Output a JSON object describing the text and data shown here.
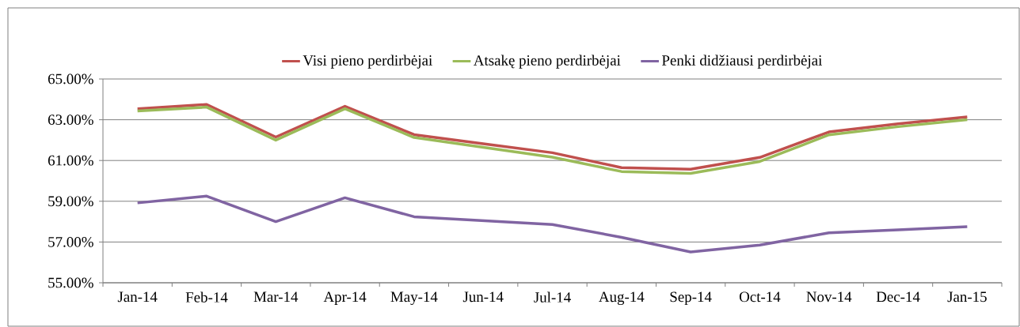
{
  "chart_data": {
    "type": "line",
    "categories": [
      "Jan-14",
      "Feb-14",
      "Mar-14",
      "Apr-14",
      "May-14",
      "Jun-14",
      "Jul-14",
      "Aug-14",
      "Sep-14",
      "Oct-14",
      "Nov-14",
      "Dec-14",
      "Jan-15"
    ],
    "series": [
      {
        "name": "Visi pieno perdirbėjai",
        "color": "#c0504d",
        "values": [
          63.54,
          63.75,
          62.15,
          63.66,
          62.27,
          61.82,
          61.38,
          60.65,
          60.57,
          61.15,
          62.4,
          62.8,
          63.14
        ]
      },
      {
        "name": "Atsakę pieno perdirbėjai",
        "color": "#9bbb59",
        "values": [
          63.43,
          63.62,
          62.0,
          63.54,
          62.13,
          61.65,
          61.16,
          60.46,
          60.37,
          60.95,
          62.26,
          62.66,
          63.0
        ]
      },
      {
        "name": "Penki didžiausi perdirbėjai",
        "color": "#8064a2",
        "values": [
          58.92,
          59.25,
          58.0,
          59.17,
          58.24,
          58.05,
          57.86,
          57.23,
          56.51,
          56.85,
          57.45,
          57.6,
          57.75
        ]
      }
    ],
    "ylim": [
      55,
      65
    ],
    "yticks": [
      {
        "value": 55,
        "label": "55.00%"
      },
      {
        "value": 57,
        "label": "57.00%"
      },
      {
        "value": 59,
        "label": "59.00%"
      },
      {
        "value": 61,
        "label": "61.00%"
      },
      {
        "value": 63,
        "label": "63.00%"
      },
      {
        "value": 65,
        "label": "65.00%"
      }
    ],
    "grid": "y",
    "legend": "top",
    "marker": "none",
    "line_style": "solid"
  }
}
